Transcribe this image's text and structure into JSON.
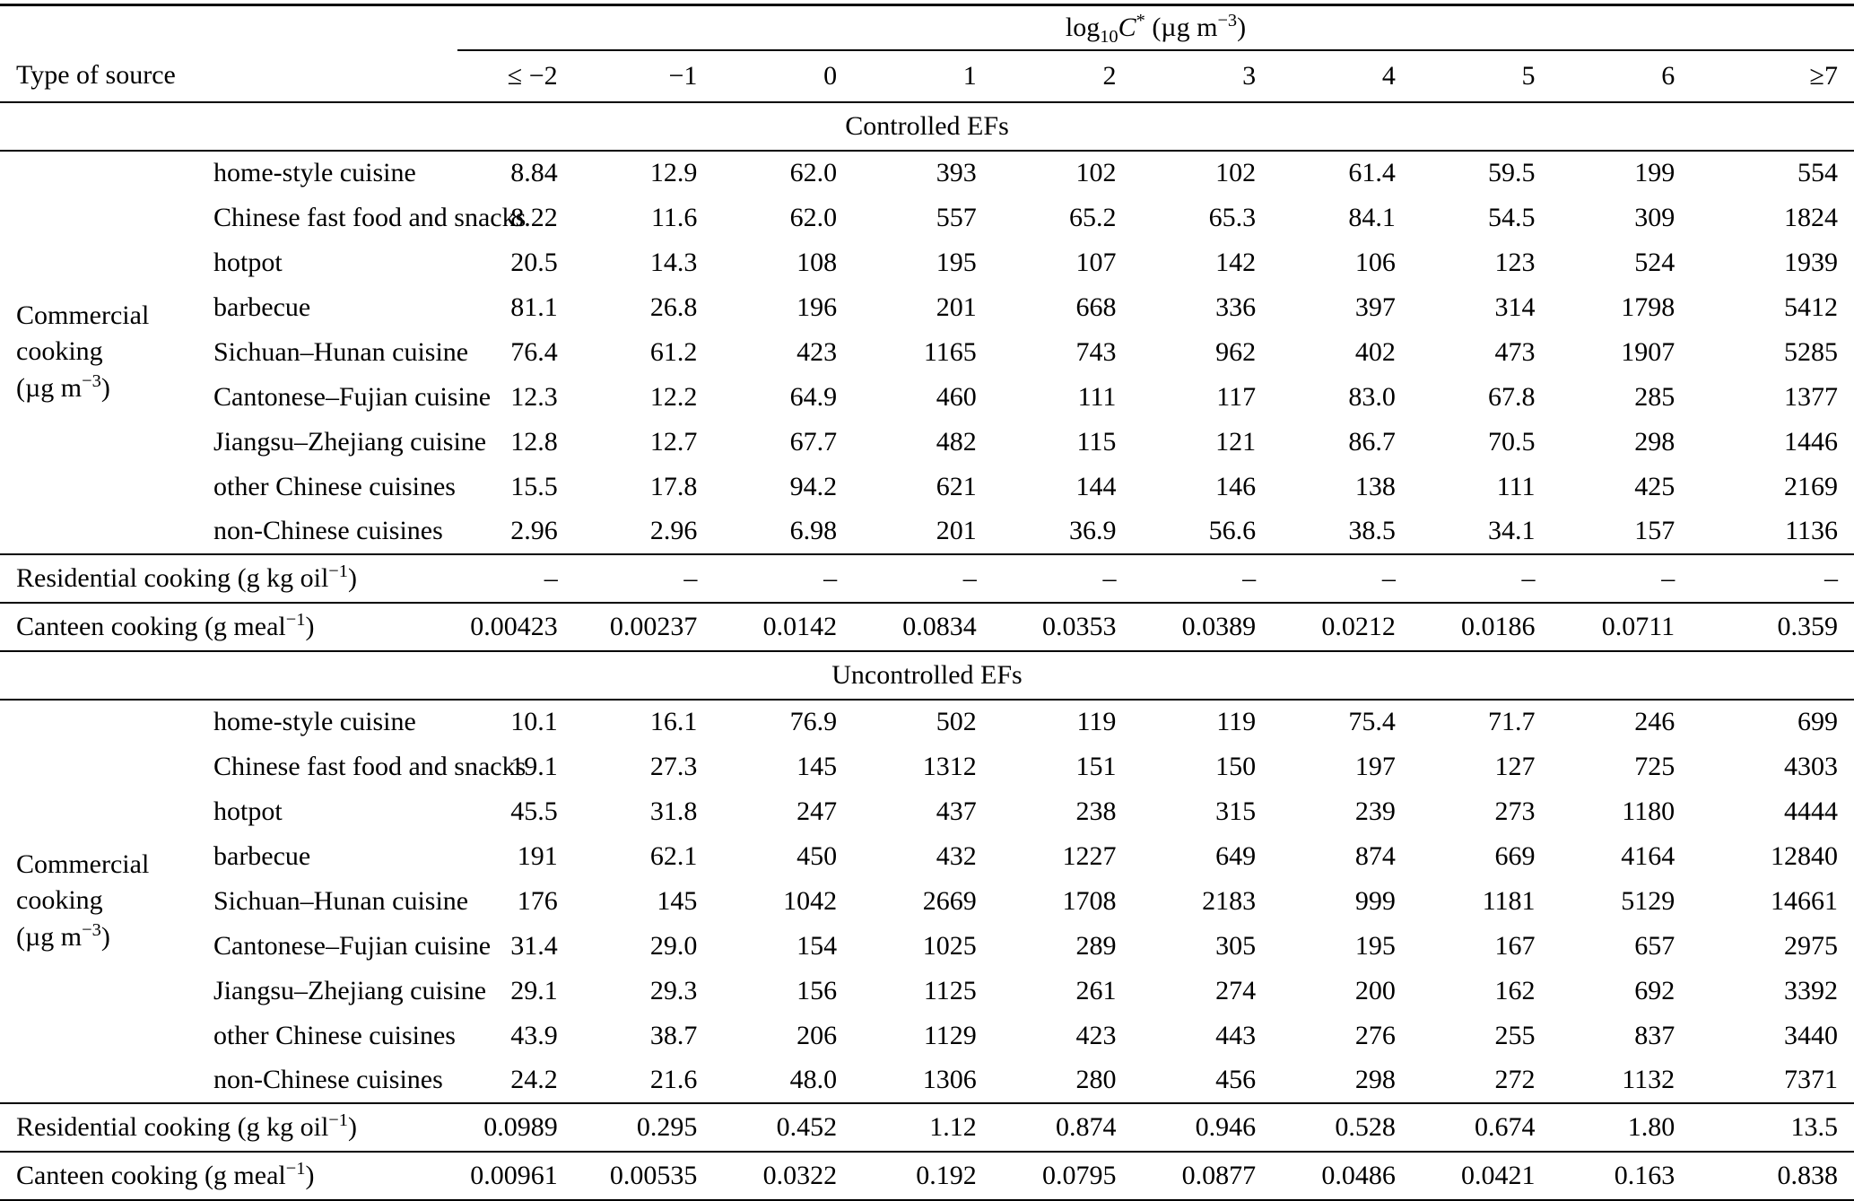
{
  "header": {
    "row_label": "Type of source",
    "group_label": "log_{10}~C~^{*} (µg m^{−3})",
    "columns": [
      "≤ −2",
      "−1",
      "0",
      "1",
      "2",
      "3",
      "4",
      "5",
      "6",
      "≥7"
    ]
  },
  "sections": [
    {
      "title": "Controlled EFs",
      "commercial_label": [
        "Commercial",
        "cooking",
        "(µg m^{−3})"
      ],
      "commercial_rows": [
        {
          "label": "home-style cuisine",
          "values": [
            "8.84",
            "12.9",
            "62.0",
            "393",
            "102",
            "102",
            "61.4",
            "59.5",
            "199",
            "554"
          ]
        },
        {
          "label": "Chinese fast food and snacks",
          "values": [
            "8.22",
            "11.6",
            "62.0",
            "557",
            "65.2",
            "65.3",
            "84.1",
            "54.5",
            "309",
            "1824"
          ]
        },
        {
          "label": "hotpot",
          "values": [
            "20.5",
            "14.3",
            "108",
            "195",
            "107",
            "142",
            "106",
            "123",
            "524",
            "1939"
          ]
        },
        {
          "label": "barbecue",
          "values": [
            "81.1",
            "26.8",
            "196",
            "201",
            "668",
            "336",
            "397",
            "314",
            "1798",
            "5412"
          ]
        },
        {
          "label": "Sichuan–Hunan cuisine",
          "values": [
            "76.4",
            "61.2",
            "423",
            "1165",
            "743",
            "962",
            "402",
            "473",
            "1907",
            "5285"
          ]
        },
        {
          "label": "Cantonese–Fujian cuisine",
          "values": [
            "12.3",
            "12.2",
            "64.9",
            "460",
            "111",
            "117",
            "83.0",
            "67.8",
            "285",
            "1377"
          ]
        },
        {
          "label": "Jiangsu–Zhejiang cuisine",
          "values": [
            "12.8",
            "12.7",
            "67.7",
            "482",
            "115",
            "121",
            "86.7",
            "70.5",
            "298",
            "1446"
          ]
        },
        {
          "label": "other Chinese cuisines",
          "values": [
            "15.5",
            "17.8",
            "94.2",
            "621",
            "144",
            "146",
            "138",
            "111",
            "425",
            "2169"
          ]
        },
        {
          "label": "non-Chinese cuisines",
          "values": [
            "2.96",
            "2.96",
            "6.98",
            "201",
            "36.9",
            "56.6",
            "38.5",
            "34.1",
            "157",
            "1136"
          ]
        }
      ],
      "residential": {
        "label": "Residential cooking (g kg oil^{−1})",
        "values": [
          "–",
          "–",
          "–",
          "–",
          "–",
          "–",
          "–",
          "–",
          "–",
          "–"
        ]
      },
      "canteen": {
        "label": "Canteen cooking (g meal^{−1})",
        "values": [
          "0.00423",
          "0.00237",
          "0.0142",
          "0.0834",
          "0.0353",
          "0.0389",
          "0.0212",
          "0.0186",
          "0.0711",
          "0.359"
        ]
      }
    },
    {
      "title": "Uncontrolled EFs",
      "commercial_label": [
        "Commercial",
        "cooking",
        "(µg m^{−3})"
      ],
      "commercial_rows": [
        {
          "label": "home-style cuisine",
          "values": [
            "10.1",
            "16.1",
            "76.9",
            "502",
            "119",
            "119",
            "75.4",
            "71.7",
            "246",
            "699"
          ]
        },
        {
          "label": "Chinese fast food and snacks",
          "values": [
            "19.1",
            "27.3",
            "145",
            "1312",
            "151",
            "150",
            "197",
            "127",
            "725",
            "4303"
          ]
        },
        {
          "label": "hotpot",
          "values": [
            "45.5",
            "31.8",
            "247",
            "437",
            "238",
            "315",
            "239",
            "273",
            "1180",
            "4444"
          ]
        },
        {
          "label": "barbecue",
          "values": [
            "191",
            "62.1",
            "450",
            "432",
            "1227",
            "649",
            "874",
            "669",
            "4164",
            "12840"
          ]
        },
        {
          "label": "Sichuan–Hunan cuisine",
          "values": [
            "176",
            "145",
            "1042",
            "2669",
            "1708",
            "2183",
            "999",
            "1181",
            "5129",
            "14661"
          ]
        },
        {
          "label": "Cantonese–Fujian cuisine",
          "values": [
            "31.4",
            "29.0",
            "154",
            "1025",
            "289",
            "305",
            "195",
            "167",
            "657",
            "2975"
          ]
        },
        {
          "label": "Jiangsu–Zhejiang cuisine",
          "values": [
            "29.1",
            "29.3",
            "156",
            "1125",
            "261",
            "274",
            "200",
            "162",
            "692",
            "3392"
          ]
        },
        {
          "label": "other Chinese cuisines",
          "values": [
            "43.9",
            "38.7",
            "206",
            "1129",
            "423",
            "443",
            "276",
            "255",
            "837",
            "3440"
          ]
        },
        {
          "label": "non-Chinese cuisines",
          "values": [
            "24.2",
            "21.6",
            "48.0",
            "1306",
            "280",
            "456",
            "298",
            "272",
            "1132",
            "7371"
          ]
        }
      ],
      "residential": {
        "label": "Residential cooking (g kg oil^{−1})",
        "values": [
          "0.0989",
          "0.295",
          "0.452",
          "1.12",
          "0.874",
          "0.946",
          "0.528",
          "0.674",
          "1.80",
          "13.5"
        ]
      },
      "canteen": {
        "label": "Canteen cooking (g meal^{−1})",
        "values": [
          "0.00961",
          "0.00535",
          "0.0322",
          "0.192",
          "0.0795",
          "0.0877",
          "0.0486",
          "0.0421",
          "0.163",
          "0.838"
        ]
      }
    }
  ]
}
